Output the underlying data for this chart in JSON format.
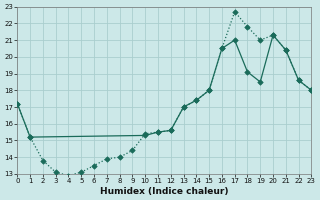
{
  "xlabel": "Humidex (Indice chaleur)",
  "bg_color": "#cce8e8",
  "grid_color": "#aacece",
  "line_color": "#1a6b5a",
  "xlim": [
    0,
    23
  ],
  "ylim": [
    13,
    23
  ],
  "xticks": [
    0,
    1,
    2,
    3,
    4,
    5,
    6,
    7,
    8,
    9,
    10,
    11,
    12,
    13,
    14,
    15,
    16,
    17,
    18,
    19,
    20,
    21,
    22,
    23
  ],
  "yticks": [
    13,
    14,
    15,
    16,
    17,
    18,
    19,
    20,
    21,
    22,
    23
  ],
  "line1_x": [
    0,
    1,
    2,
    3,
    4,
    5,
    6,
    7,
    8,
    9,
    10,
    11,
    12,
    13,
    14,
    15,
    16,
    17,
    18,
    19,
    20,
    21,
    22,
    23
  ],
  "line1_y": [
    17.2,
    15.2,
    13.8,
    13.1,
    12.9,
    13.1,
    13.5,
    13.9,
    14.0,
    14.4,
    15.4,
    15.5,
    15.6,
    17.0,
    17.4,
    18.0,
    20.5,
    22.7,
    21.8,
    21.0,
    21.3,
    20.4,
    18.6,
    18.0
  ],
  "line2_x": [
    0,
    1,
    10,
    11,
    12,
    13,
    14,
    15,
    16,
    17,
    18,
    19,
    20,
    21,
    22,
    23
  ],
  "line2_y": [
    17.2,
    15.2,
    15.3,
    15.5,
    15.6,
    17.0,
    17.4,
    18.0,
    20.5,
    21.0,
    19.1,
    18.5,
    21.3,
    20.4,
    18.6,
    18.0
  ]
}
